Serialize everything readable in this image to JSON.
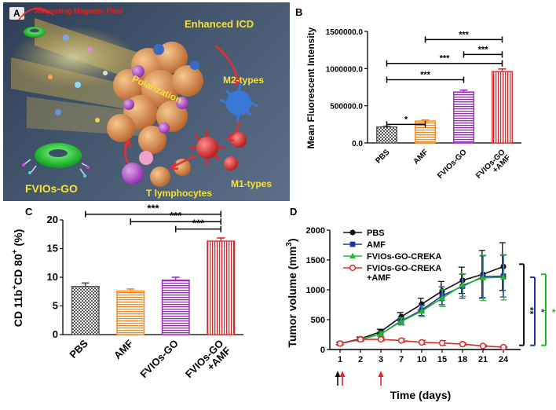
{
  "panel_a": {
    "label": "A",
    "texts": {
      "field": "Alternating Magnetic Field",
      "icd": "Enhanced ICD",
      "polarization": "Polarization",
      "m2": "M2-types",
      "m1": "M1-types",
      "tlym": "T lymphocytes",
      "fvios": "FVIOs-GO"
    },
    "colors": {
      "title_yellow": "#f4e13a",
      "field_red": "#e02020"
    }
  },
  "chart_data": [
    {
      "panel": "B",
      "type": "bar",
      "ylabel": "Mean Fluorescent Intensity",
      "ylim": [
        0,
        1500000
      ],
      "yticks": [
        0,
        500000,
        1000000,
        1500000
      ],
      "ytick_labels": [
        "0.0",
        "500000.0",
        "1000000.0",
        "1500000.0"
      ],
      "categories": [
        "PBS",
        "AMF",
        "FVIOs-GO",
        "FVIOs-GO\n+AMF"
      ],
      "values": [
        215000,
        295000,
        685000,
        960000
      ],
      "errors": [
        10000,
        15000,
        25000,
        35000
      ],
      "colors": [
        "#555555",
        "#f08a24",
        "#9a2ab8",
        "#e02828"
      ],
      "patterns": [
        "check",
        "hlines",
        "hlines",
        "vlines"
      ],
      "significance": [
        {
          "from": 0,
          "to": 1,
          "label": "*",
          "level": 250000
        },
        {
          "from": 0,
          "to": 2,
          "label": "***",
          "level": 850000
        },
        {
          "from": 0,
          "to": 3,
          "label": "***",
          "level": 1070000
        },
        {
          "from": 2,
          "to": 3,
          "label": "***",
          "level": 1190000
        },
        {
          "from": 1,
          "to": 3,
          "label": "***",
          "level": 1390000
        }
      ]
    },
    {
      "panel": "C",
      "type": "bar",
      "ylabel_parts": [
        "CD 11b",
        "+",
        "CD 80",
        "+",
        " (%)"
      ],
      "ylim": [
        0,
        20
      ],
      "yticks": [
        0,
        5,
        10,
        15,
        20
      ],
      "ytick_labels": [
        "0",
        "5",
        "10",
        "15",
        "20"
      ],
      "categories": [
        "PBS",
        "AMF",
        "FVIOs-GO",
        "FVIOs-GO\n+AMF"
      ],
      "values": [
        8.4,
        7.6,
        9.5,
        16.3
      ],
      "errors": [
        0.6,
        0.35,
        0.5,
        0.55
      ],
      "colors": [
        "#555555",
        "#f08a24",
        "#9a2ab8",
        "#e02828"
      ],
      "patterns": [
        "check",
        "hlines",
        "hlines",
        "vlines"
      ],
      "significance": [
        {
          "from": 0,
          "to": 3,
          "label": "***",
          "level": 21.0
        },
        {
          "from": 1,
          "to": 3,
          "label": "***",
          "level": 19.7
        },
        {
          "from": 2,
          "to": 3,
          "label": "***",
          "level": 18.4
        }
      ]
    },
    {
      "panel": "D",
      "type": "line",
      "ylabel_parts": [
        "Tumor volume (mm",
        "3",
        ")"
      ],
      "xlabel": "Time (days)",
      "ylim": [
        0,
        2000
      ],
      "yticks": [
        0,
        500,
        1000,
        1500,
        2000
      ],
      "ytick_labels": [
        "0",
        "500",
        "1000",
        "1500",
        "2000"
      ],
      "x": [
        "1",
        "2",
        "3",
        "7",
        "10",
        "15",
        "18",
        "21",
        "24"
      ],
      "series": [
        {
          "name": "PBS",
          "color": "#111111",
          "marker": "circle",
          "values": [
            100,
            180,
            300,
            550,
            760,
            980,
            1160,
            1260,
            1390
          ],
          "errors": [
            20,
            30,
            40,
            70,
            100,
            160,
            220,
            400,
            400
          ]
        },
        {
          "name": "AMF",
          "color": "#2233aa",
          "marker": "square",
          "values": [
            100,
            170,
            260,
            480,
            660,
            900,
            1060,
            1220,
            1230
          ],
          "errors": [
            20,
            30,
            40,
            60,
            90,
            150,
            200,
            350,
            350
          ]
        },
        {
          "name": "FVIOs-GO-CREKA",
          "color": "#22bb22",
          "marker": "triangle",
          "values": [
            100,
            170,
            260,
            470,
            640,
            860,
            1080,
            1200,
            1210
          ],
          "errors": [
            20,
            30,
            40,
            60,
            90,
            140,
            190,
            380,
            380
          ]
        },
        {
          "name": "FVIOs-GO-CREKA\n+AMF",
          "color": "#e02828",
          "marker": "circle-open",
          "values": [
            100,
            170,
            170,
            150,
            120,
            110,
            90,
            60,
            40
          ],
          "errors": [
            20,
            25,
            25,
            30,
            35,
            40,
            20,
            15,
            10
          ]
        }
      ],
      "sig_markers": [
        {
          "label": "**",
          "color": "#111111"
        },
        {
          "label": "*",
          "color": "#2233aa"
        },
        {
          "label": "*",
          "color": "#22bb22"
        }
      ],
      "arrows": [
        {
          "x_index": 0,
          "color": "#111111"
        },
        {
          "x_index": 0,
          "color": "#e02828"
        },
        {
          "x_index": 2,
          "color": "#e02828"
        }
      ]
    }
  ]
}
